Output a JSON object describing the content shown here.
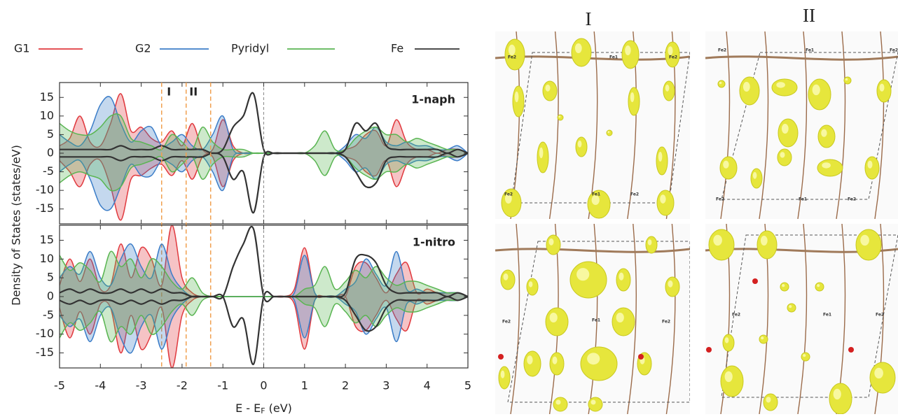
{
  "chart_data": [
    {
      "type": "line",
      "label": "1-naph",
      "y_label": "Density of States (states/eV)",
      "xlim": [
        -5,
        5
      ],
      "ylim": [
        -19,
        19
      ],
      "yticks": [
        15,
        10,
        5,
        0,
        -5,
        -10,
        -15
      ],
      "fermi_level": 0,
      "vlines": [
        -2.5,
        -1.9,
        -1.3
      ],
      "annotations": [
        "I",
        "II"
      ],
      "x": [
        -5,
        -4.75,
        -4.5,
        -4.25,
        -4,
        -3.75,
        -3.5,
        -3.25,
        -3,
        -2.75,
        -2.5,
        -2.25,
        -2,
        -1.75,
        -1.5,
        -1.25,
        -1,
        -0.75,
        -0.5,
        -0.25,
        0,
        0.25,
        0.5,
        0.75,
        1,
        1.25,
        1.5,
        1.75,
        2,
        2.25,
        2.5,
        2.75,
        3,
        3.25,
        3.5,
        3.75,
        4,
        4.25,
        4.5,
        4.75,
        5
      ],
      "series": [
        {
          "name": "G1",
          "color": "#e0393e",
          "fill": true,
          "values": [
            2,
            4,
            10,
            3,
            2,
            8,
            16,
            6,
            7,
            4,
            3,
            6,
            2,
            8,
            1,
            1,
            9,
            2,
            0,
            0,
            0,
            0,
            0,
            0,
            0,
            0,
            0,
            0,
            1,
            2,
            5,
            6,
            2,
            9,
            3,
            1,
            1,
            0,
            1,
            1,
            0
          ],
          "values_down": [
            -2,
            -5,
            -9,
            -3,
            -2,
            -9,
            -18,
            -7,
            -6,
            -4,
            -3,
            -6,
            -2,
            -7,
            -1,
            -1,
            -9,
            -2,
            0,
            0,
            0,
            0,
            0,
            0,
            0,
            0,
            0,
            0,
            -1,
            -2,
            -5,
            -6,
            -2,
            -9,
            -3,
            -1,
            -1,
            0,
            -1,
            -1,
            0
          ]
        },
        {
          "name": "G2",
          "color": "#3b7dc8",
          "fill": true,
          "values": [
            5,
            3,
            2,
            6,
            13,
            15,
            8,
            3,
            6,
            7,
            2,
            3,
            5,
            2,
            1,
            5,
            10,
            1,
            0,
            0,
            0,
            0,
            0,
            0,
            0,
            0,
            0,
            0,
            2,
            5,
            4,
            7,
            3,
            2,
            3,
            2,
            2,
            1,
            1,
            2,
            0
          ],
          "values_down": [
            -5,
            -3,
            -2,
            -7,
            -14,
            -15,
            -9,
            -3,
            -6,
            -6,
            -2,
            -3,
            -5,
            -2,
            -1,
            -5,
            -10,
            -1,
            0,
            0,
            0,
            0,
            0,
            0,
            0,
            0,
            0,
            0,
            -2,
            -5,
            -4,
            -7,
            -3,
            -2,
            -3,
            -2,
            -2,
            -1,
            -1,
            -2,
            0
          ]
        },
        {
          "name": "Pyridyl",
          "color": "#5ab552",
          "fill": true,
          "values": [
            8,
            6,
            5,
            5,
            7,
            10,
            10,
            4,
            3,
            2,
            1,
            5,
            3,
            1,
            7,
            3,
            1,
            1,
            1,
            0,
            0,
            0,
            0,
            0,
            0,
            2,
            6,
            1,
            1,
            4,
            6,
            7,
            5,
            5,
            3,
            4,
            3,
            2,
            1,
            1,
            0
          ],
          "values_down": [
            -8,
            -6,
            -5,
            -6,
            -7,
            -10,
            -9,
            -4,
            -3,
            -2,
            -1,
            -5,
            -3,
            -1,
            -7,
            -3,
            -1,
            -1,
            -1,
            0,
            0,
            0,
            0,
            0,
            0,
            -2,
            -6,
            -1,
            -1,
            -4,
            -6,
            -7,
            -5,
            -5,
            -3,
            -4,
            -3,
            -2,
            -1,
            -1,
            0
          ]
        },
        {
          "name": "Fe",
          "color": "#333333",
          "fill": false,
          "values": [
            1,
            1,
            1,
            1,
            1,
            1,
            2,
            1,
            1,
            1,
            2,
            1,
            1,
            1,
            1,
            0,
            1,
            7,
            10,
            16,
            1,
            0,
            0,
            0,
            0,
            0,
            0,
            0,
            1,
            8,
            6,
            8,
            2,
            1,
            1,
            1,
            1,
            1,
            0,
            1,
            0
          ],
          "values_down": [
            -1,
            -1,
            -1,
            -1,
            -1,
            -1,
            -2,
            -1,
            -1,
            -1,
            -2,
            -1,
            -1,
            -1,
            -1,
            0,
            -1,
            -7,
            -5,
            -16,
            -1,
            0,
            0,
            0,
            0,
            0,
            0,
            0,
            -1,
            -5,
            -9,
            -8,
            -2,
            -1,
            -1,
            -1,
            -1,
            -1,
            0,
            -1,
            0
          ]
        }
      ]
    },
    {
      "type": "line",
      "label": "1-nitro",
      "x_label": [
        "E - E",
        "F",
        " (eV)"
      ],
      "xlim": [
        -5,
        5
      ],
      "ylim": [
        -19,
        19
      ],
      "yticks": [
        15,
        10,
        5,
        0,
        -5,
        -10,
        -15
      ],
      "xticks": [
        -5,
        -4,
        -3,
        -2,
        -1,
        0,
        1,
        2,
        3,
        4,
        5
      ],
      "fermi_level": 0,
      "x": [
        -5,
        -4.75,
        -4.5,
        -4.25,
        -4,
        -3.75,
        -3.5,
        -3.25,
        -3,
        -2.75,
        -2.5,
        -2.25,
        -2,
        -1.75,
        -1.5,
        -1.25,
        -1,
        -0.75,
        -0.5,
        -0.25,
        0,
        0.25,
        0.5,
        0.75,
        1,
        1.25,
        1.5,
        1.75,
        2,
        2.25,
        2.5,
        2.75,
        3,
        3.25,
        3.5,
        3.75,
        4,
        4.25,
        4.5,
        4.75,
        5
      ],
      "series": [
        {
          "name": "G1",
          "color": "#e0393e",
          "fill": true,
          "values": [
            3,
            10,
            4,
            10,
            2,
            3,
            14,
            5,
            13,
            10,
            3,
            19,
            5,
            1,
            0,
            0,
            0,
            0,
            0,
            0,
            0,
            0,
            0,
            2,
            13,
            1,
            0,
            0,
            0,
            8,
            9,
            5,
            1,
            6,
            9,
            1,
            2,
            1,
            1,
            1,
            0
          ],
          "values_down": [
            -3,
            -11,
            -4,
            -10,
            -2,
            -3,
            -15,
            -5,
            -14,
            -10,
            -3,
            -19,
            -5,
            -1,
            0,
            0,
            0,
            0,
            0,
            0,
            0,
            0,
            0,
            -2,
            -14,
            -1,
            0,
            0,
            0,
            -8,
            -9,
            -5,
            -1,
            -6,
            -9,
            -1,
            -2,
            -1,
            -1,
            -1,
            0
          ]
        },
        {
          "name": "G2",
          "color": "#3b7dc8",
          "fill": true,
          "values": [
            5,
            8,
            6,
            12,
            5,
            3,
            10,
            14,
            8,
            5,
            14,
            6,
            2,
            0,
            0,
            0,
            0,
            0,
            0,
            0,
            0,
            0,
            0,
            1,
            11,
            1,
            0,
            0,
            2,
            4,
            10,
            6,
            3,
            12,
            2,
            2,
            1,
            1,
            1,
            1,
            0
          ],
          "values_down": [
            -5,
            -8,
            -6,
            -12,
            -5,
            -3,
            -11,
            -15,
            -8,
            -5,
            -14,
            -6,
            -2,
            0,
            0,
            0,
            0,
            0,
            0,
            0,
            0,
            0,
            0,
            -1,
            -11,
            -1,
            0,
            0,
            -2,
            -4,
            -10,
            -6,
            -3,
            -12,
            -2,
            -2,
            -1,
            -1,
            -1,
            -1,
            0
          ]
        },
        {
          "name": "Pyridyl",
          "color": "#5ab552",
          "fill": true,
          "values": [
            11,
            7,
            9,
            7,
            4,
            12,
            8,
            10,
            5,
            10,
            8,
            4,
            2,
            5,
            1,
            0,
            0,
            0,
            0,
            0,
            0,
            0,
            0,
            0,
            2,
            3,
            8,
            2,
            4,
            7,
            5,
            8,
            5,
            3,
            4,
            4,
            3,
            2,
            1,
            1,
            0
          ],
          "values_down": [
            -11,
            -7,
            -9,
            -7,
            -4,
            -12,
            -8,
            -10,
            -5,
            -10,
            -8,
            -4,
            -2,
            -5,
            -1,
            0,
            0,
            0,
            0,
            0,
            0,
            0,
            0,
            0,
            -2,
            -3,
            -8,
            -2,
            -4,
            -7,
            -5,
            -8,
            -5,
            -3,
            -4,
            -4,
            -3,
            -2,
            -1,
            -1,
            0
          ]
        },
        {
          "name": "Fe",
          "color": "#333333",
          "fill": false,
          "values": [
            1,
            2,
            1,
            2,
            1,
            1,
            2,
            1,
            2,
            1,
            2,
            1,
            1,
            0,
            0,
            0,
            0,
            8,
            14,
            18,
            0,
            0,
            0,
            0,
            0,
            0,
            0,
            0,
            1,
            10,
            11,
            9,
            3,
            1,
            1,
            1,
            1,
            1,
            0,
            1,
            0
          ],
          "values_down": [
            -1,
            -2,
            -1,
            -2,
            -1,
            -1,
            -2,
            -1,
            -2,
            -1,
            -2,
            -1,
            -1,
            0,
            0,
            0,
            0,
            -8,
            -6,
            -18,
            0,
            0,
            0,
            0,
            0,
            0,
            0,
            0,
            -1,
            -5,
            -9,
            -8,
            -3,
            -1,
            -1,
            -1,
            -1,
            -1,
            0,
            -1,
            0
          ]
        }
      ]
    }
  ],
  "isosurfaces": {
    "titles": [
      "I",
      "II"
    ],
    "panels": [
      {
        "labels": [
          "Fe2",
          "Fe1",
          "Fe2",
          "Fe2",
          "Fe1",
          "Fe2"
        ]
      },
      {
        "labels": [
          "Fe2",
          "Fe1",
          "Fe2",
          "Fe2",
          "Fe1",
          "Fe2"
        ]
      },
      {
        "labels": [
          "Fe2",
          "Fe1",
          "Fe2"
        ]
      },
      {
        "labels": [
          "Fe2",
          "Fe1",
          "Fe2"
        ]
      }
    ]
  }
}
